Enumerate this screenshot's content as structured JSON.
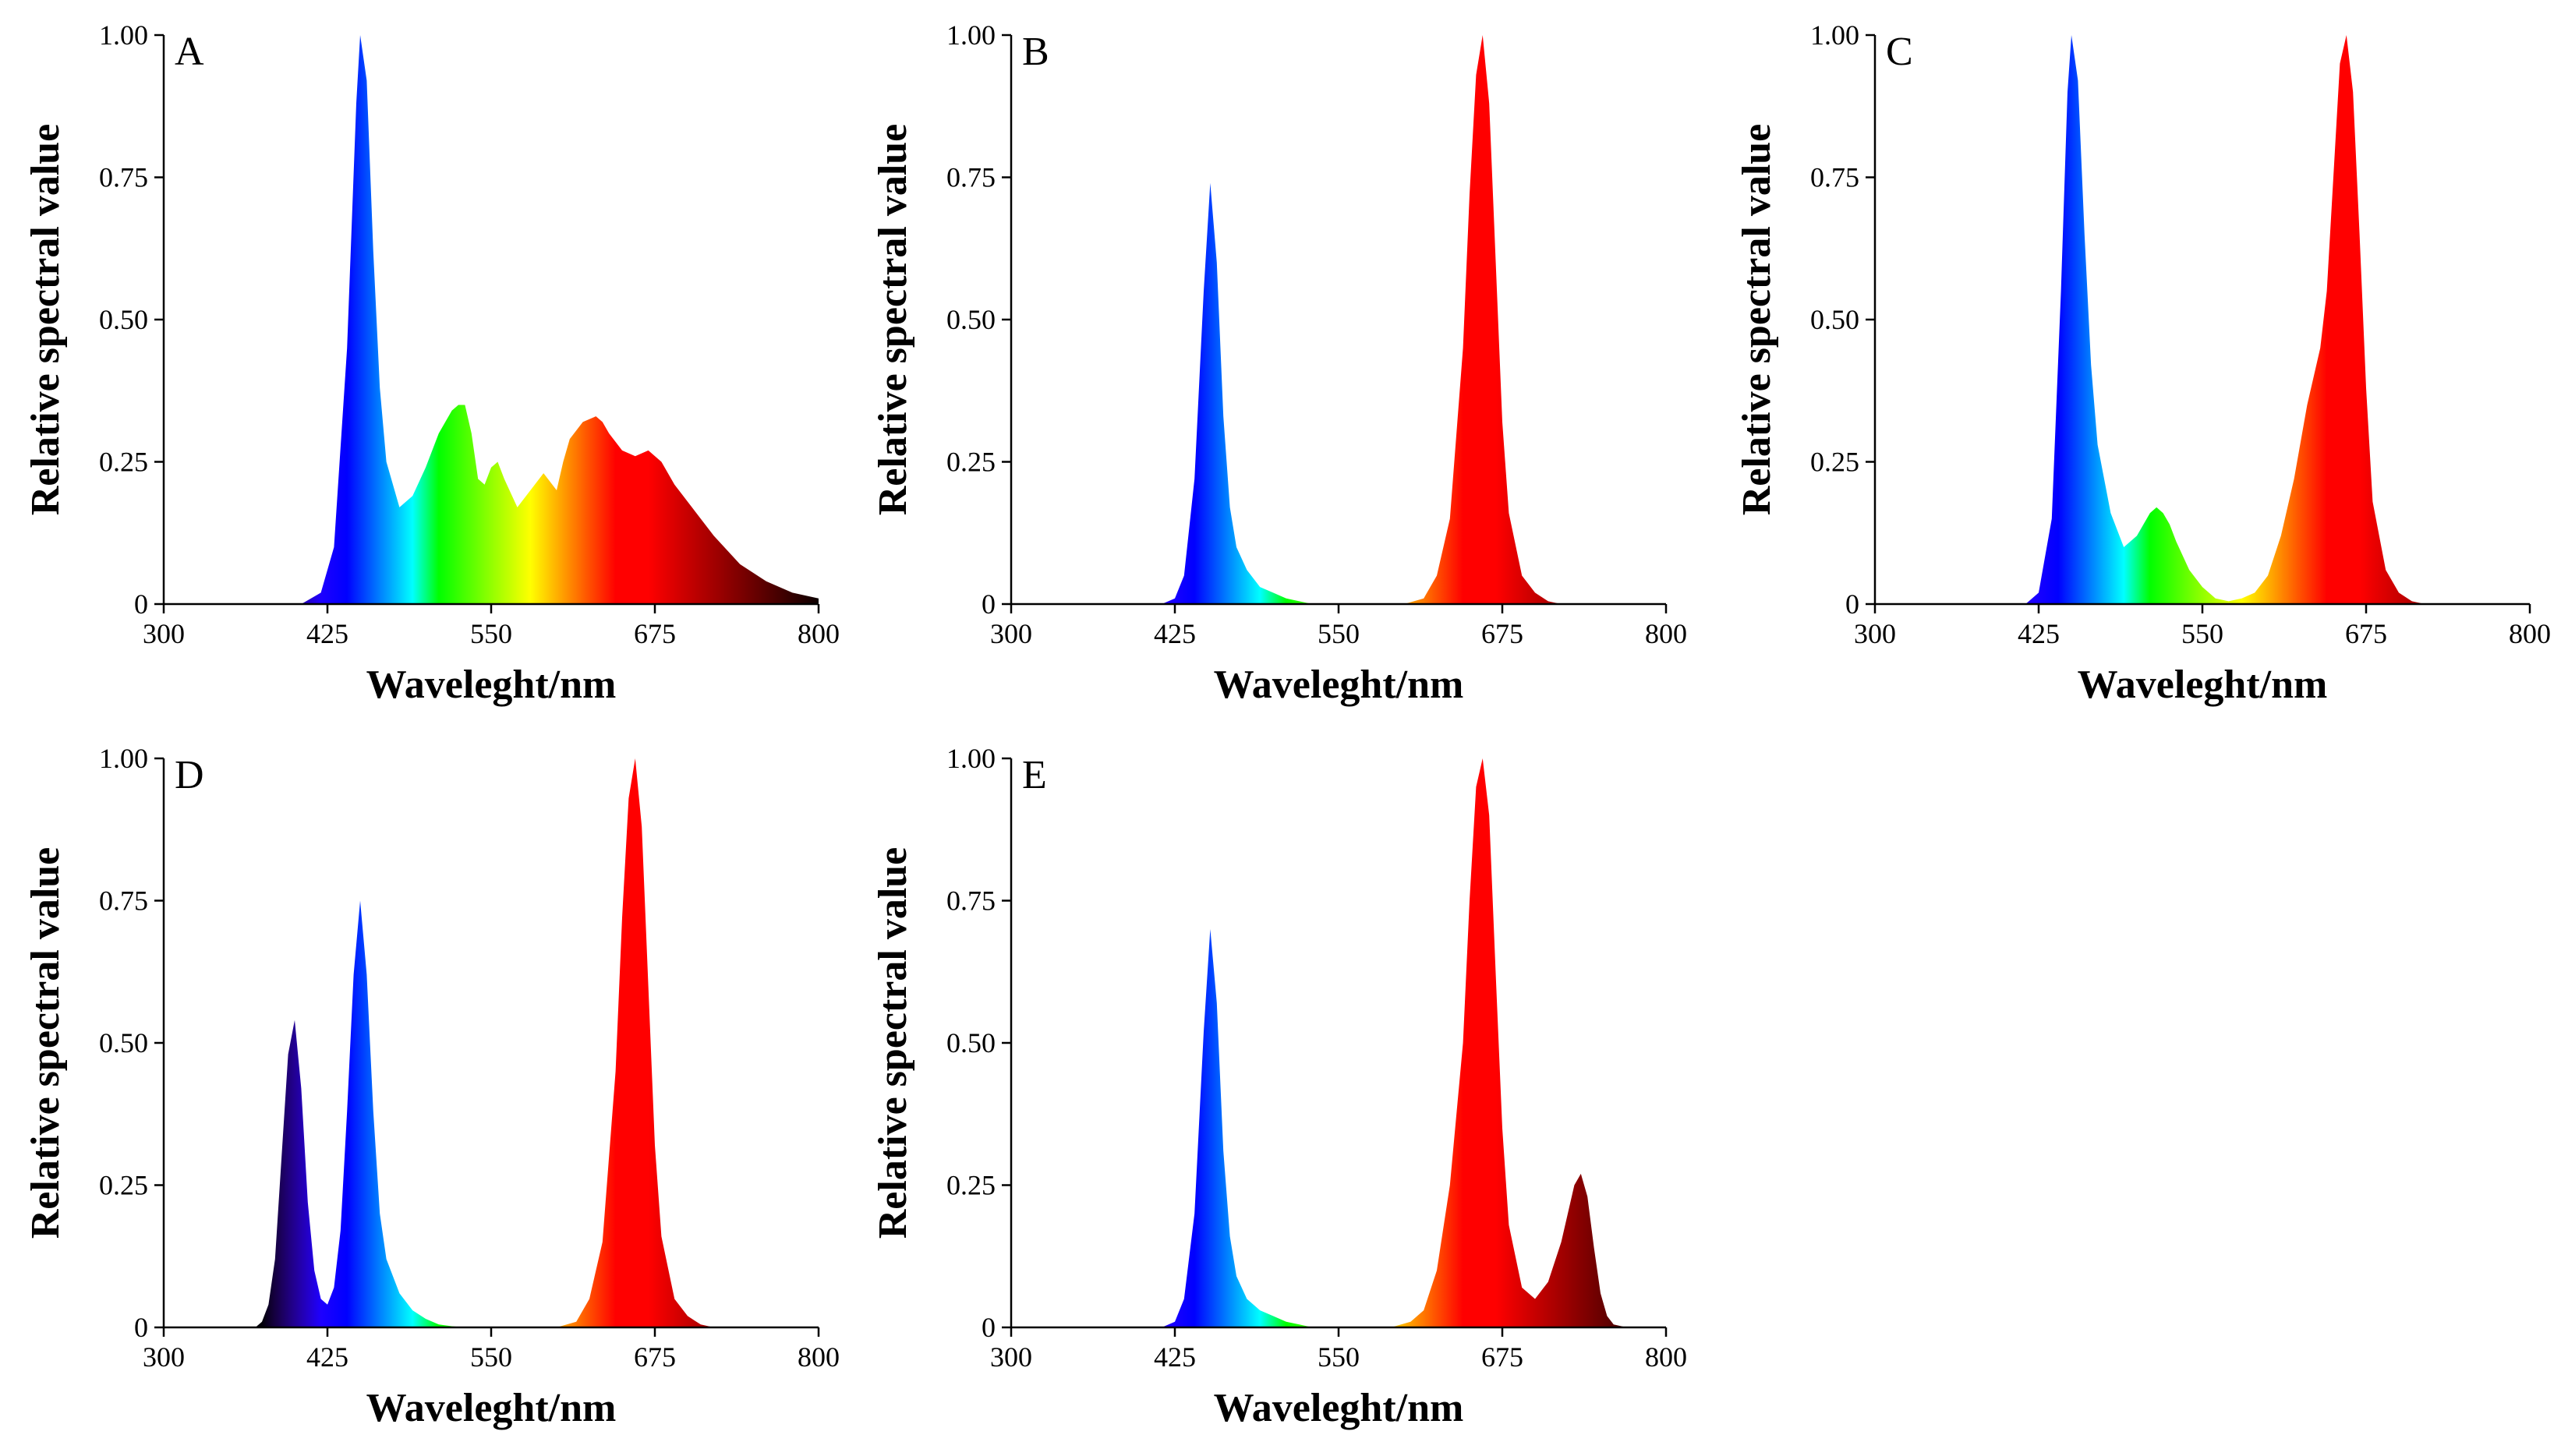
{
  "chart_data": [
    {
      "type": "area",
      "panel_label": "A",
      "xlabel": "Waveleght/nm",
      "ylabel": "Relative spectral value",
      "xlim": [
        300,
        800
      ],
      "ylim": [
        0,
        1
      ],
      "x_ticks": [
        300,
        425,
        550,
        675,
        800
      ],
      "x_tick_labels": [
        "300",
        "425",
        "550",
        "675",
        "800"
      ],
      "y_ticks": [
        0,
        0.25,
        0.5,
        0.75,
        1
      ],
      "y_tick_labels": [
        "0",
        "0.25",
        "0.50",
        "0.75",
        "1.00"
      ],
      "series": [
        {
          "name": "A",
          "x": [
            405,
            420,
            430,
            440,
            447,
            450,
            455,
            460,
            465,
            470,
            480,
            490,
            500,
            510,
            520,
            525,
            530,
            535,
            540,
            545,
            550,
            555,
            560,
            570,
            580,
            590,
            600,
            605,
            610,
            620,
            630,
            635,
            640,
            650,
            660,
            670,
            680,
            690,
            700,
            720,
            740,
            760,
            780,
            800
          ],
          "y": [
            0,
            0.02,
            0.1,
            0.45,
            0.88,
            1.0,
            0.92,
            0.62,
            0.38,
            0.25,
            0.17,
            0.19,
            0.24,
            0.3,
            0.34,
            0.35,
            0.35,
            0.3,
            0.22,
            0.21,
            0.24,
            0.25,
            0.22,
            0.17,
            0.2,
            0.23,
            0.2,
            0.25,
            0.29,
            0.32,
            0.33,
            0.32,
            0.3,
            0.27,
            0.26,
            0.27,
            0.25,
            0.21,
            0.18,
            0.12,
            0.07,
            0.04,
            0.02,
            0.01
          ]
        }
      ]
    },
    {
      "type": "area",
      "panel_label": "B",
      "xlabel": "Waveleght/nm",
      "ylabel": "Relative spectral value",
      "xlim": [
        300,
        800
      ],
      "ylim": [
        0,
        1
      ],
      "x_ticks": [
        300,
        425,
        550,
        675,
        800
      ],
      "x_tick_labels": [
        "300",
        "425",
        "550",
        "675",
        "800"
      ],
      "y_ticks": [
        0,
        0.25,
        0.5,
        0.75,
        1
      ],
      "y_tick_labels": [
        "0",
        "0.25",
        "0.50",
        "0.75",
        "1.00"
      ],
      "series": [
        {
          "name": "B",
          "x": [
            415,
            425,
            432,
            440,
            447,
            452,
            457,
            462,
            467,
            472,
            480,
            490,
            500,
            510,
            520,
            530,
            600,
            615,
            625,
            635,
            645,
            650,
            655,
            660,
            665,
            670,
            675,
            680,
            690,
            700,
            710,
            720
          ],
          "y": [
            0,
            0.01,
            0.05,
            0.22,
            0.55,
            0.74,
            0.6,
            0.33,
            0.17,
            0.1,
            0.06,
            0.03,
            0.02,
            0.01,
            0.005,
            0,
            0,
            0.01,
            0.05,
            0.15,
            0.45,
            0.72,
            0.93,
            1.0,
            0.88,
            0.6,
            0.32,
            0.16,
            0.05,
            0.02,
            0.005,
            0
          ]
        }
      ]
    },
    {
      "type": "area",
      "panel_label": "C",
      "xlabel": "Waveleght/nm",
      "ylabel": "Relative spectral value",
      "xlim": [
        300,
        800
      ],
      "ylim": [
        0,
        1
      ],
      "x_ticks": [
        300,
        425,
        550,
        675,
        800
      ],
      "x_tick_labels": [
        "300",
        "425",
        "550",
        "675",
        "800"
      ],
      "y_ticks": [
        0,
        0.25,
        0.5,
        0.75,
        1
      ],
      "y_tick_labels": [
        "0",
        "0.25",
        "0.50",
        "0.75",
        "1.00"
      ],
      "series": [
        {
          "name": "C",
          "x": [
            415,
            425,
            435,
            442,
            447,
            450,
            455,
            460,
            465,
            470,
            480,
            490,
            500,
            510,
            515,
            520,
            525,
            530,
            540,
            550,
            560,
            570,
            580,
            590,
            600,
            610,
            620,
            630,
            640,
            645,
            650,
            655,
            660,
            665,
            670,
            675,
            680,
            690,
            700,
            710,
            720
          ],
          "y": [
            0,
            0.02,
            0.15,
            0.55,
            0.9,
            1.0,
            0.92,
            0.65,
            0.42,
            0.28,
            0.16,
            0.1,
            0.12,
            0.16,
            0.17,
            0.16,
            0.14,
            0.11,
            0.06,
            0.03,
            0.01,
            0.005,
            0.01,
            0.02,
            0.05,
            0.12,
            0.22,
            0.35,
            0.45,
            0.55,
            0.75,
            0.95,
            1.0,
            0.9,
            0.65,
            0.38,
            0.18,
            0.06,
            0.02,
            0.005,
            0
          ]
        }
      ]
    },
    {
      "type": "area",
      "panel_label": "D",
      "xlabel": "Waveleght/nm",
      "ylabel": "Relative spectral value",
      "xlim": [
        300,
        800
      ],
      "ylim": [
        0,
        1
      ],
      "x_ticks": [
        300,
        425,
        550,
        675,
        800
      ],
      "x_tick_labels": [
        "300",
        "425",
        "550",
        "675",
        "800"
      ],
      "y_ticks": [
        0,
        0.25,
        0.5,
        0.75,
        1
      ],
      "y_tick_labels": [
        "0",
        "0.25",
        "0.50",
        "0.75",
        "1.00"
      ],
      "series": [
        {
          "name": "D",
          "x": [
            370,
            375,
            380,
            385,
            390,
            395,
            400,
            405,
            410,
            415,
            420,
            425,
            430,
            435,
            440,
            445,
            450,
            455,
            460,
            465,
            470,
            480,
            490,
            500,
            510,
            520,
            530,
            600,
            615,
            625,
            635,
            645,
            650,
            655,
            660,
            665,
            670,
            675,
            680,
            690,
            700,
            710,
            720
          ],
          "y": [
            0,
            0.01,
            0.04,
            0.12,
            0.3,
            0.48,
            0.54,
            0.42,
            0.22,
            0.1,
            0.05,
            0.04,
            0.07,
            0.17,
            0.38,
            0.62,
            0.75,
            0.62,
            0.38,
            0.2,
            0.12,
            0.06,
            0.03,
            0.015,
            0.005,
            0.002,
            0,
            0,
            0.01,
            0.05,
            0.15,
            0.45,
            0.72,
            0.93,
            1.0,
            0.88,
            0.6,
            0.32,
            0.16,
            0.05,
            0.02,
            0.005,
            0
          ]
        }
      ]
    },
    {
      "type": "area",
      "panel_label": "E",
      "xlabel": "Waveleght/nm",
      "ylabel": "Relative spectral value",
      "xlim": [
        300,
        800
      ],
      "ylim": [
        0,
        1
      ],
      "x_ticks": [
        300,
        425,
        550,
        675,
        800
      ],
      "x_tick_labels": [
        "300",
        "425",
        "550",
        "675",
        "800"
      ],
      "y_ticks": [
        0,
        0.25,
        0.5,
        0.75,
        1
      ],
      "y_tick_labels": [
        "0",
        "0.25",
        "0.50",
        "0.75",
        "1.00"
      ],
      "series": [
        {
          "name": "E",
          "x": [
            415,
            425,
            432,
            440,
            447,
            452,
            457,
            462,
            467,
            472,
            480,
            490,
            500,
            510,
            520,
            530,
            590,
            605,
            615,
            625,
            635,
            645,
            650,
            655,
            660,
            665,
            670,
            675,
            680,
            690,
            700,
            710,
            720,
            725,
            730,
            735,
            740,
            745,
            750,
            755,
            760,
            770
          ],
          "y": [
            0,
            0.01,
            0.05,
            0.2,
            0.52,
            0.7,
            0.57,
            0.31,
            0.16,
            0.09,
            0.05,
            0.03,
            0.02,
            0.01,
            0.005,
            0,
            0,
            0.01,
            0.03,
            0.1,
            0.25,
            0.5,
            0.75,
            0.95,
            1.0,
            0.9,
            0.62,
            0.35,
            0.18,
            0.07,
            0.05,
            0.08,
            0.15,
            0.2,
            0.25,
            0.27,
            0.23,
            0.14,
            0.06,
            0.02,
            0.005,
            0
          ]
        }
      ]
    }
  ]
}
